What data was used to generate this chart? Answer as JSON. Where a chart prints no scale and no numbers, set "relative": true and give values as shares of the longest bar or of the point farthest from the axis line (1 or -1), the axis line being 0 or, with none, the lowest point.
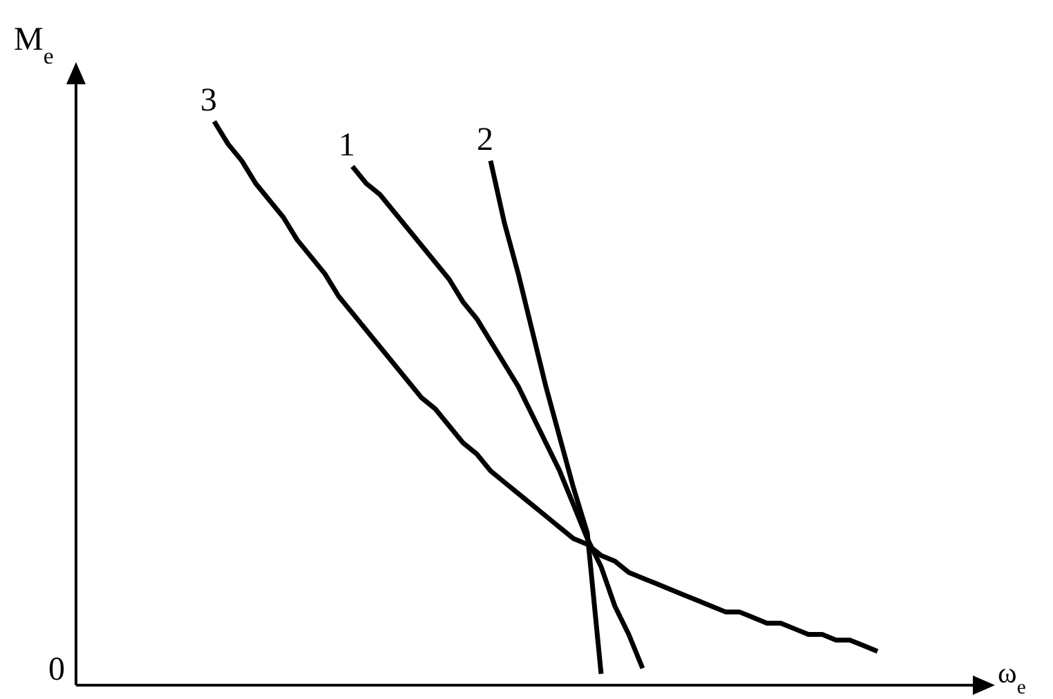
{
  "chart_data": {
    "type": "line",
    "relative": true,
    "xlabel": "ω$_{e}$",
    "ylabel": "M$_{e}$",
    "annotations": [
      "0"
    ],
    "line_style": "solid",
    "marker": "none",
    "legend": false,
    "grid": false,
    "categories": [
      null,
      null,
      null,
      null,
      null,
      null,
      null,
      null,
      null,
      null,
      null,
      null,
      null,
      null,
      null,
      null,
      null,
      null,
      null,
      null,
      null,
      null,
      null,
      null,
      null,
      null,
      null,
      null,
      null,
      null,
      null,
      null,
      null,
      null,
      null,
      null,
      null,
      null,
      null,
      null,
      null,
      null,
      null,
      null,
      null,
      null,
      null,
      null,
      null,
      null,
      null,
      null,
      null,
      null,
      null,
      null,
      null,
      null,
      null,
      null,
      null,
      null,
      null,
      null,
      null,
      null,
      null
    ],
    "series": [
      {
        "name": "1",
        "color": "#000000",
        "values": [
          null,
          null,
          null,
          null,
          null,
          null,
          null,
          null,
          null,
          null,
          null,
          null,
          null,
          null,
          null,
          null,
          null,
          null,
          null,
          null,
          0.92,
          0.89,
          0.87,
          0.84,
          0.81,
          0.78,
          0.75,
          0.72,
          0.68,
          0.65,
          0.61,
          0.57,
          0.53,
          0.48,
          0.43,
          0.38,
          0.32,
          0.26,
          0.21,
          0.14,
          0.09,
          0.03,
          null,
          null,
          null,
          null,
          null,
          null,
          null,
          null,
          null,
          null,
          null,
          null,
          null,
          null,
          null,
          null,
          null,
          null,
          null,
          null,
          null,
          null,
          null,
          null,
          null
        ]
      },
      {
        "name": "2",
        "color": "#000000",
        "values": [
          null,
          null,
          null,
          null,
          null,
          null,
          null,
          null,
          null,
          null,
          null,
          null,
          null,
          null,
          null,
          null,
          null,
          null,
          null,
          null,
          null,
          null,
          null,
          null,
          null,
          null,
          null,
          null,
          null,
          null,
          0.93,
          0.82,
          0.73,
          0.63,
          0.53,
          0.44,
          0.35,
          0.27,
          0.02,
          null,
          null,
          null,
          null,
          null,
          null,
          null,
          null,
          null,
          null,
          null,
          null,
          null,
          null,
          null,
          null,
          null,
          null,
          null,
          null,
          null,
          null,
          null,
          null,
          null,
          null,
          null,
          null
        ]
      },
      {
        "name": "3",
        "color": "#000000",
        "values": [
          null,
          null,
          null,
          null,
          null,
          null,
          null,
          null,
          null,
          null,
          1,
          0.96,
          0.93,
          0.89,
          0.86,
          0.83,
          0.79,
          0.76,
          0.73,
          0.69,
          0.66,
          0.63,
          0.6,
          0.57,
          0.54,
          0.51,
          0.49,
          0.46,
          0.43,
          0.41,
          0.38,
          0.36,
          0.34,
          0.32,
          0.3,
          0.28,
          0.26,
          0.25,
          0.23,
          0.22,
          0.2,
          0.19,
          0.18,
          0.17,
          0.16,
          0.15,
          0.14,
          0.13,
          0.13,
          0.12,
          0.11,
          0.11,
          0.1,
          0.09,
          0.09,
          0.08,
          0.08,
          0.07,
          0.06,
          null,
          null,
          null,
          null,
          null,
          null,
          null,
          null
        ]
      }
    ]
  }
}
